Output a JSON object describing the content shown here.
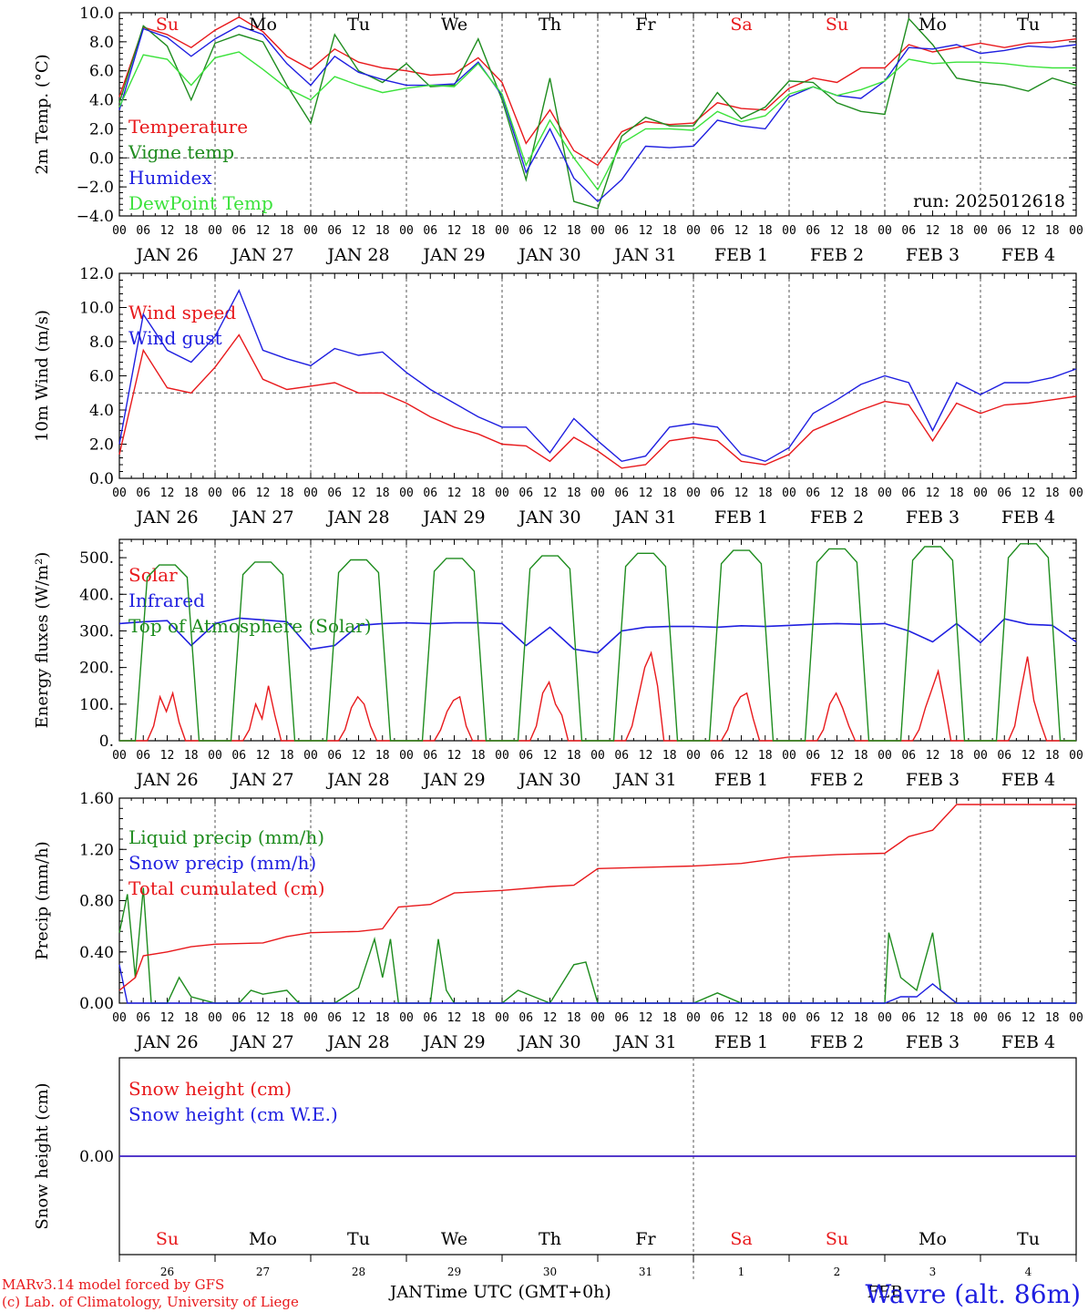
{
  "colors": {
    "red": "#e8191c",
    "darkgreen": "#1e8c1e",
    "blue": "#1f1fe0",
    "lightgreen": "#3be23b",
    "axis": "#000000"
  },
  "x_axis": {
    "hour_ticks": [
      "00",
      "06",
      "12",
      "18"
    ],
    "date_labels": [
      "JAN 26",
      "JAN 27",
      "JAN 28",
      "JAN 29",
      "JAN 30",
      "JAN 31",
      "FEB  1",
      "FEB  2",
      "FEB  3",
      "FEB  4"
    ],
    "day_names": [
      {
        "text": "Su",
        "color": "red"
      },
      {
        "text": "Mo",
        "color": "black"
      },
      {
        "text": "Tu",
        "color": "black"
      },
      {
        "text": "We",
        "color": "black"
      },
      {
        "text": "Th",
        "color": "black"
      },
      {
        "text": "Fr",
        "color": "black"
      },
      {
        "text": "Sa",
        "color": "red"
      },
      {
        "text": "Su",
        "color": "red"
      },
      {
        "text": "Mo",
        "color": "black"
      },
      {
        "text": "Tu",
        "color": "black"
      }
    ],
    "day_numbers": [
      "26",
      "27",
      "28",
      "29",
      "30",
      "31",
      "1",
      "2",
      "3",
      "4"
    ],
    "month_labels": [
      "JAN",
      "FEB"
    ],
    "title": "Time UTC (GMT+0h)"
  },
  "footer": {
    "line1": "MARv3.14 model forced by GFS",
    "line2": "(c) Lab. of Climatology, University of Liege",
    "station": "Wavre (alt. 86m)"
  },
  "chart_data": [
    {
      "type": "line",
      "ylabel": "2m Temp. (°C)",
      "ylim": [
        -4,
        10
      ],
      "yticks": [
        "10.0",
        "8.0",
        "6.0",
        "4.0",
        "2.0",
        "0.0",
        "−2.0",
        "−4.0"
      ],
      "annotation": "run: 2025012618",
      "x_hours": [
        0,
        6,
        12,
        18,
        24,
        30,
        36,
        42,
        48,
        54,
        60,
        66,
        72,
        78,
        84,
        90,
        96,
        102,
        108,
        114,
        120,
        126,
        132,
        138,
        144,
        150,
        156,
        162,
        168,
        174,
        180,
        186,
        192,
        198,
        204,
        210,
        216,
        222,
        228,
        234,
        240
      ],
      "series": [
        {
          "name": "Temperature",
          "color": "red",
          "values": [
            4.2,
            9.0,
            8.5,
            7.6,
            8.8,
            9.7,
            8.7,
            7.0,
            6.1,
            7.5,
            6.6,
            6.2,
            6.0,
            5.7,
            5.8,
            6.9,
            5.2,
            1.0,
            3.3,
            0.5,
            -0.5,
            1.8,
            2.5,
            2.3,
            2.4,
            3.8,
            3.4,
            3.3,
            4.8,
            5.5,
            5.2,
            6.2,
            6.2,
            7.8,
            7.3,
            7.6,
            7.9,
            7.6,
            7.9,
            8.0,
            8.2
          ]
        },
        {
          "name": "Vigne temp",
          "color": "darkgreen",
          "values": [
            3.8,
            9.1,
            7.7,
            4.0,
            7.9,
            8.5,
            8.0,
            5.0,
            2.4,
            8.5,
            6.0,
            5.2,
            6.5,
            4.9,
            5.0,
            8.2,
            4.0,
            -1.5,
            5.5,
            -3.0,
            -3.5,
            1.5,
            2.8,
            2.2,
            2.2,
            4.5,
            2.7,
            3.5,
            5.3,
            5.2,
            3.8,
            3.2,
            3.0,
            9.6,
            7.8,
            5.5,
            5.2,
            5.0,
            4.6,
            5.5,
            5.0
          ]
        },
        {
          "name": "Humidex",
          "color": "blue",
          "values": [
            3.3,
            8.9,
            8.3,
            7.0,
            8.2,
            9.1,
            8.5,
            6.5,
            5.0,
            7.0,
            5.9,
            5.4,
            5.0,
            5.0,
            5.1,
            6.6,
            4.3,
            -1.0,
            2.0,
            -1.4,
            -3.0,
            -1.5,
            0.8,
            0.7,
            0.8,
            2.6,
            2.2,
            2.0,
            4.2,
            4.9,
            4.3,
            4.1,
            5.3,
            7.6,
            7.5,
            7.8,
            7.2,
            7.4,
            7.7,
            7.6,
            7.8
          ]
        },
        {
          "name": "DewPoint Temp",
          "color": "lightgreen",
          "values": [
            3.5,
            7.1,
            6.8,
            5.0,
            6.9,
            7.3,
            6.1,
            4.8,
            4.0,
            5.6,
            5.0,
            4.5,
            4.8,
            5.0,
            4.9,
            6.5,
            4.4,
            -0.5,
            2.6,
            0.0,
            -2.2,
            1.0,
            2.0,
            2.0,
            1.9,
            3.2,
            2.5,
            2.9,
            4.4,
            4.9,
            4.3,
            4.7,
            5.3,
            6.8,
            6.5,
            6.6,
            6.6,
            6.5,
            6.3,
            6.2,
            6.2
          ]
        }
      ]
    },
    {
      "type": "line",
      "ylabel": "10m Wind (m/s)",
      "ylim": [
        0,
        12
      ],
      "yticks": [
        "12.0",
        "10.0",
        "8.0",
        "6.0",
        "4.0",
        "2.0",
        "0.0"
      ],
      "x_hours": [
        0,
        6,
        12,
        18,
        24,
        30,
        36,
        42,
        48,
        54,
        60,
        66,
        72,
        78,
        84,
        90,
        96,
        102,
        108,
        114,
        120,
        126,
        132,
        138,
        144,
        150,
        156,
        162,
        168,
        174,
        180,
        186,
        192,
        198,
        204,
        210,
        216,
        222,
        228,
        234,
        240
      ],
      "series": [
        {
          "name": "Wind speed",
          "color": "red",
          "values": [
            1.4,
            7.5,
            5.3,
            5.0,
            6.5,
            8.4,
            5.8,
            5.2,
            5.4,
            5.6,
            5.0,
            5.0,
            4.4,
            3.6,
            3.0,
            2.6,
            2.0,
            1.9,
            1.0,
            2.4,
            1.6,
            0.6,
            0.8,
            2.2,
            2.4,
            2.2,
            1.0,
            0.8,
            1.4,
            2.8,
            3.4,
            4.0,
            4.5,
            4.3,
            2.2,
            4.4,
            3.8,
            4.3,
            4.4,
            4.6,
            4.8
          ]
        },
        {
          "name": "Wind gust",
          "color": "blue",
          "values": [
            2.0,
            9.6,
            7.5,
            6.8,
            8.3,
            11.0,
            7.5,
            7.0,
            6.6,
            7.6,
            7.2,
            7.4,
            6.2,
            5.2,
            4.4,
            3.6,
            3.0,
            3.0,
            1.5,
            3.5,
            2.2,
            1.0,
            1.3,
            3.0,
            3.2,
            3.0,
            1.4,
            1.0,
            1.8,
            3.8,
            4.6,
            5.5,
            6.0,
            5.6,
            2.8,
            5.6,
            4.9,
            5.6,
            5.6,
            5.9,
            6.4
          ]
        }
      ]
    },
    {
      "type": "line",
      "ylabel": "Energy fluxes (W/m²)",
      "ylim": [
        0,
        550
      ],
      "yticks": [
        "500.",
        "400.",
        "300.",
        "200.",
        "100.",
        "0."
      ],
      "series": [
        {
          "name": "Solar",
          "color": "red",
          "peaks": [
            {
              "day": 0,
              "values": [
                0,
                40,
                120,
                80,
                130,
                50,
                0
              ]
            },
            {
              "day": 1,
              "values": [
                0,
                30,
                100,
                60,
                150,
                70,
                0
              ]
            },
            {
              "day": 2,
              "values": [
                0,
                30,
                90,
                120,
                100,
                40,
                0
              ]
            },
            {
              "day": 3,
              "values": [
                0,
                30,
                80,
                110,
                120,
                40,
                0
              ]
            },
            {
              "day": 4,
              "values": [
                0,
                40,
                130,
                160,
                100,
                70,
                0
              ]
            },
            {
              "day": 5,
              "values": [
                0,
                40,
                120,
                200,
                240,
                150,
                0
              ]
            },
            {
              "day": 6,
              "values": [
                0,
                30,
                90,
                120,
                130,
                60,
                0
              ]
            },
            {
              "day": 7,
              "values": [
                0,
                30,
                100,
                130,
                90,
                40,
                0
              ]
            },
            {
              "day": 8,
              "values": [
                0,
                30,
                90,
                140,
                190,
                100,
                0
              ]
            },
            {
              "day": 9,
              "values": [
                0,
                40,
                140,
                230,
                110,
                50,
                0
              ]
            }
          ]
        },
        {
          "name": "Infrared",
          "color": "blue",
          "x_hours": [
            0,
            6,
            12,
            18,
            24,
            30,
            36,
            42,
            48,
            54,
            60,
            66,
            72,
            78,
            84,
            90,
            96,
            102,
            108,
            114,
            120,
            126,
            132,
            138,
            144,
            150,
            156,
            162,
            168,
            174,
            180,
            186,
            192,
            198,
            204,
            210,
            216,
            222,
            228,
            234,
            240
          ],
          "values": [
            320,
            325,
            328,
            260,
            320,
            335,
            330,
            325,
            250,
            260,
            315,
            320,
            322,
            320,
            322,
            322,
            320,
            260,
            310,
            250,
            240,
            300,
            310,
            312,
            312,
            310,
            314,
            312,
            315,
            318,
            320,
            318,
            320,
            300,
            270,
            320,
            268,
            333,
            318,
            315,
            270
          ]
        },
        {
          "name": "Top of Atmosphere (Solar)",
          "color": "darkgreen",
          "peaks_toa": [
            480,
            488,
            494,
            498,
            505,
            512,
            520,
            524,
            530,
            538
          ]
        }
      ]
    },
    {
      "type": "line",
      "ylabel": "Precip (mm/h)",
      "ylim": [
        0,
        1.6
      ],
      "yticks": [
        "1.60",
        "1.20",
        "0.80",
        "0.40",
        "0.00"
      ],
      "series": [
        {
          "name": "Liquid precip (mm/h)",
          "color": "darkgreen",
          "points": [
            [
              0,
              0.55
            ],
            [
              2,
              0.85
            ],
            [
              4,
              0.2
            ],
            [
              6,
              0.9
            ],
            [
              8,
              0.0
            ],
            [
              12,
              0.0
            ],
            [
              15,
              0.2
            ],
            [
              18,
              0.05
            ],
            [
              24,
              0.0
            ],
            [
              30,
              0.0
            ],
            [
              33,
              0.1
            ],
            [
              36,
              0.07
            ],
            [
              42,
              0.1
            ],
            [
              45,
              0.0
            ],
            [
              54,
              0.0
            ],
            [
              60,
              0.12
            ],
            [
              64,
              0.5
            ],
            [
              66,
              0.2
            ],
            [
              68,
              0.5
            ],
            [
              70,
              0.0
            ],
            [
              78,
              0.0
            ],
            [
              80,
              0.5
            ],
            [
              82,
              0.1
            ],
            [
              84,
              0.0
            ],
            [
              96,
              0.0
            ],
            [
              100,
              0.1
            ],
            [
              104,
              0.05
            ],
            [
              108,
              0.0
            ],
            [
              114,
              0.3
            ],
            [
              117,
              0.32
            ],
            [
              120,
              0.0
            ],
            [
              144,
              0.0
            ],
            [
              150,
              0.08
            ],
            [
              156,
              0.0
            ],
            [
              192,
              0.0
            ],
            [
              193,
              0.55
            ],
            [
              196,
              0.2
            ],
            [
              200,
              0.1
            ],
            [
              204,
              0.55
            ],
            [
              206,
              0.1
            ],
            [
              210,
              0.0
            ],
            [
              240,
              0.0
            ]
          ]
        },
        {
          "name": "Snow precip (mm/h)",
          "color": "blue",
          "points": [
            [
              0,
              0.3
            ],
            [
              2,
              0.0
            ],
            [
              192,
              0.0
            ],
            [
              196,
              0.05
            ],
            [
              200,
              0.05
            ],
            [
              204,
              0.15
            ],
            [
              208,
              0.05
            ],
            [
              210,
              0.0
            ],
            [
              240,
              0.0
            ]
          ]
        },
        {
          "name": "Total cumulated (cm)",
          "color": "red",
          "points": [
            [
              0,
              0.1
            ],
            [
              4,
              0.2
            ],
            [
              6,
              0.37
            ],
            [
              12,
              0.4
            ],
            [
              18,
              0.44
            ],
            [
              24,
              0.46
            ],
            [
              36,
              0.47
            ],
            [
              42,
              0.52
            ],
            [
              48,
              0.55
            ],
            [
              60,
              0.56
            ],
            [
              66,
              0.58
            ],
            [
              70,
              0.75
            ],
            [
              78,
              0.77
            ],
            [
              84,
              0.86
            ],
            [
              96,
              0.88
            ],
            [
              108,
              0.91
            ],
            [
              114,
              0.92
            ],
            [
              120,
              1.05
            ],
            [
              132,
              1.06
            ],
            [
              144,
              1.07
            ],
            [
              156,
              1.09
            ],
            [
              168,
              1.14
            ],
            [
              180,
              1.16
            ],
            [
              192,
              1.17
            ],
            [
              198,
              1.3
            ],
            [
              204,
              1.35
            ],
            [
              210,
              1.55
            ],
            [
              240,
              1.55
            ]
          ]
        }
      ]
    },
    {
      "type": "line",
      "ylabel": "Snow height (cm)",
      "ylim": [
        -1,
        1
      ],
      "yticks": [
        "0.00"
      ],
      "series": [
        {
          "name": "Snow height (cm)",
          "color": "red",
          "values": [
            0,
            0
          ]
        },
        {
          "name": "Snow height (cm W.E.)",
          "color": "blue",
          "values": [
            0,
            0
          ]
        }
      ]
    }
  ]
}
